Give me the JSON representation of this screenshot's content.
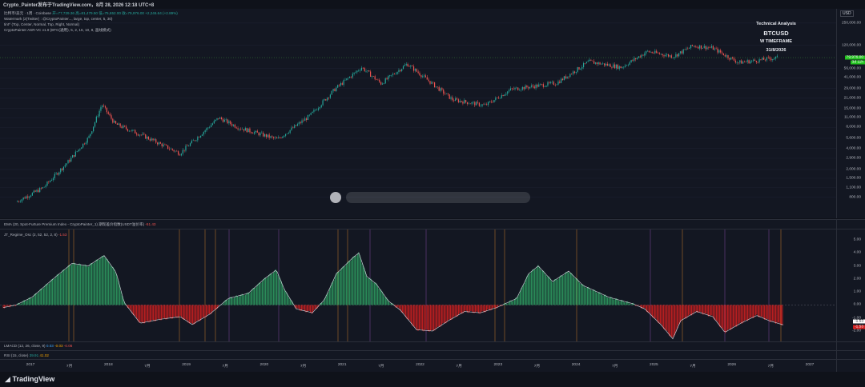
{
  "header": {
    "title": "Crypto_Painter发布于TradingView.com，8月 28, 2026 12:18 UTC+8"
  },
  "legend": {
    "main": "比特币/美元 · 1周 · Coinbase",
    "ohlc": "开=77,729.36 高=81,479.50 低=75,652.00 收=79,976.00 +2,246.64 (+2.89%)",
    "line2": "Watermark (2(Twitter) : @CryptoPainter..., large, top, center, 5, 30)",
    "line3": "tint^ (Top, Center, Normal, Top, Right, Normal)",
    "line4": "CryptoPainter ASR-VC v1.9 (BTC(通用), 5, 2, 16, 10, 8, 画线模式)"
  },
  "watermark": {
    "title": "Technical Analysis",
    "symbol": "BTCUSD",
    "timeframe": "W TIMEFRAME",
    "date": "31/8/2026"
  },
  "currency": "USD",
  "price_axis": [
    "250,000.00",
    "120,000.00",
    "56,000.00",
    "41,000.00",
    "29,000.00",
    "21,000.00",
    "15,000.00",
    "11,000.00",
    "8,000.00",
    "5,600.00",
    "4,000.00",
    "2,900.00",
    "2,000.00",
    "1,500.00",
    "1,100.00",
    "800.00"
  ],
  "price_tags": {
    "last": "79,976.00",
    "countdown": "3d 11h"
  },
  "ind1": {
    "label": "EMA (20, Spot-Furture Premium Index - CryptoPainter_1) 期现差价指数(USDT溢价率)",
    "value": "-51.43"
  },
  "ind2": {
    "label": "JT_Regime_Osc (2, 52, 52, 2, 8)",
    "value": "-1.53"
  },
  "osc_axis": [
    "5.00",
    "4.00",
    "3.00",
    "2.00",
    "1.00",
    "0.00",
    "-1.00",
    "-2.00"
  ],
  "osc_tags": {
    "a": "-1.53",
    "b": "-1.53"
  },
  "ind3": {
    "label": "LMACD (12, 26, close, 9)",
    "v1": "0.03",
    "v2": "-0.03",
    "v3": "-0.06"
  },
  "ind4": {
    "label": "RSI (15, close)",
    "v1": "39.91",
    "v2": "41.02"
  },
  "time_axis": [
    "2017",
    "7月",
    "2018",
    "7月",
    "2019",
    "7月",
    "2020",
    "7月",
    "2021",
    "7月",
    "2022",
    "7月",
    "2023",
    "7月",
    "2024",
    "7月",
    "2025",
    "7月",
    "2026",
    "7月",
    "2027"
  ],
  "footer": {
    "brand": "TradingView"
  },
  "colors": {
    "up": "#26a69a",
    "down": "#ef5350",
    "bg": "#131722",
    "osc_up": "#2e9e62",
    "osc_down": "#d32020",
    "last": "#22c31e"
  },
  "chart_data": {
    "type": "candlestick+histogram",
    "symbol": "BTCUSD",
    "yscale": "log",
    "ylim": [
      400,
      400000
    ],
    "x": [
      "2016-11",
      "2017-03",
      "2017-07",
      "2017-10",
      "2017-12",
      "2018-02",
      "2018-06",
      "2018-12",
      "2019-06",
      "2019-09",
      "2020-03",
      "2020-08",
      "2020-12",
      "2021-04",
      "2021-07",
      "2021-11",
      "2022-06",
      "2022-11",
      "2023-03",
      "2023-10",
      "2024-03",
      "2024-08",
      "2024-12",
      "2025-04",
      "2025-07",
      "2025-10",
      "2026-02",
      "2026-05",
      "2026-08"
    ],
    "close": [
      700,
      1100,
      2700,
      5800,
      17000,
      9000,
      6300,
      3400,
      11000,
      8000,
      5400,
      11700,
      29000,
      58000,
      34000,
      65000,
      20000,
      16500,
      28000,
      34500,
      70000,
      58000,
      98000,
      83000,
      118000,
      110000,
      68000,
      73000,
      79976
    ],
    "osc": {
      "last": -1.53,
      "ylim": [
        -2.8,
        5.8
      ]
    }
  }
}
